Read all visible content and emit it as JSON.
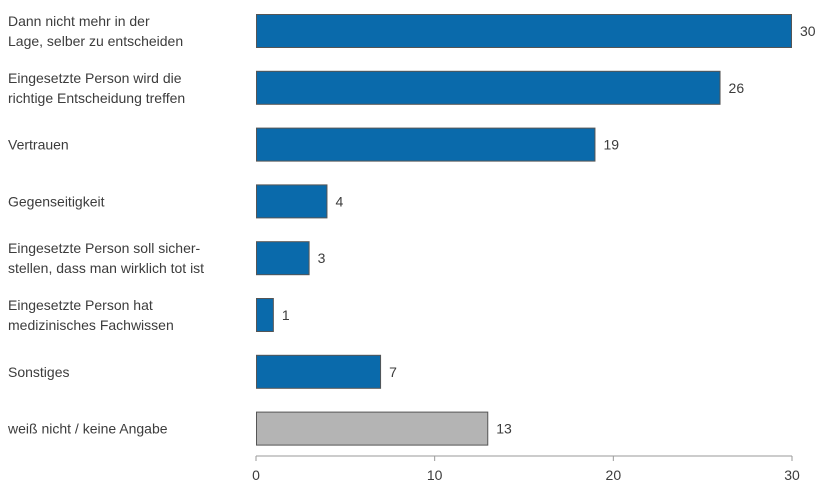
{
  "chart_data": {
    "type": "bar",
    "orientation": "horizontal",
    "title": "",
    "xlabel": "",
    "ylabel": "",
    "xlim": [
      0,
      30
    ],
    "ticks": [
      0,
      10,
      20,
      30
    ],
    "grid": false,
    "legend": "none",
    "colors": {
      "primary": "#0a6aab",
      "secondary": "#b4b4b4"
    },
    "bars": [
      {
        "label": [
          "Dann nicht mehr in der",
          "Lage, selber zu entscheiden"
        ],
        "value": 30,
        "color": "#0a6aab"
      },
      {
        "label": [
          "Eingesetzte Person wird die",
          "richtige Entscheidung treffen"
        ],
        "value": 26,
        "color": "#0a6aab"
      },
      {
        "label": [
          "Vertrauen"
        ],
        "value": 19,
        "color": "#0a6aab"
      },
      {
        "label": [
          "Gegenseitigkeit"
        ],
        "value": 4,
        "color": "#0a6aab"
      },
      {
        "label": [
          "Eingesetzte Person soll sicher-",
          "stellen, dass man wirklich tot ist"
        ],
        "value": 3,
        "color": "#0a6aab"
      },
      {
        "label": [
          "Eingesetzte Person hat",
          "medizinisches Fachwissen"
        ],
        "value": 1,
        "color": "#0a6aab"
      },
      {
        "label": [
          "Sonstiges"
        ],
        "value": 7,
        "color": "#0a6aab"
      },
      {
        "label": [
          "weiß nicht / keine Angabe"
        ],
        "value": 13,
        "color": "#b4b4b4"
      }
    ]
  }
}
